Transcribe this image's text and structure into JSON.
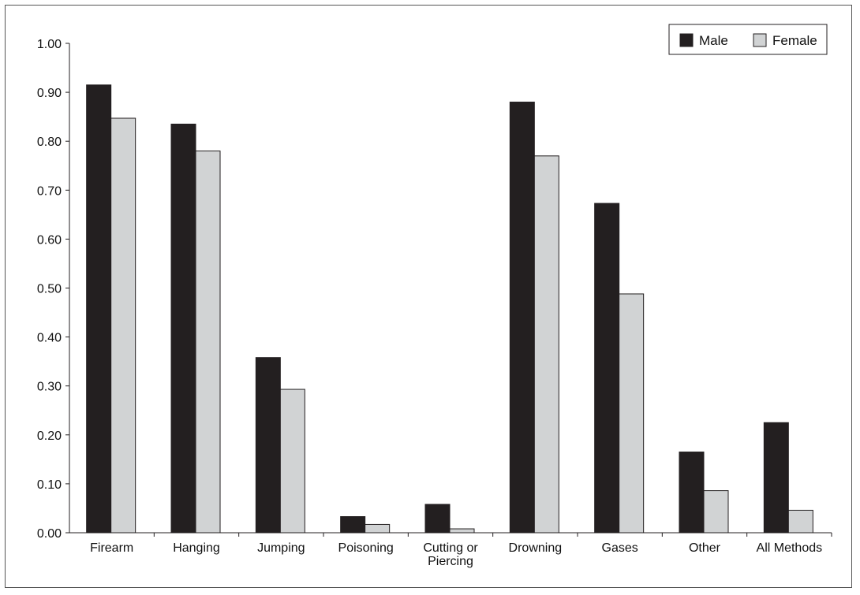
{
  "chart_data": {
    "type": "bar",
    "title": "",
    "xlabel": "",
    "ylabel": "",
    "categories": [
      "Firearm",
      "Hanging",
      "Jumping",
      "Poisoning",
      "Cutting or Piercing",
      "Drowning",
      "Gases",
      "Other",
      "All Methods"
    ],
    "category_lines": [
      [
        "Firearm"
      ],
      [
        "Hanging"
      ],
      [
        "Jumping"
      ],
      [
        "Poisoning"
      ],
      [
        "Cutting or",
        "Piercing"
      ],
      [
        "Drowning"
      ],
      [
        "Gases"
      ],
      [
        "Other"
      ],
      [
        "All Methods"
      ]
    ],
    "series": [
      {
        "name": "Male",
        "values": [
          0.915,
          0.835,
          0.358,
          0.033,
          0.058,
          0.88,
          0.673,
          0.165,
          0.225
        ]
      },
      {
        "name": "Female",
        "values": [
          0.847,
          0.78,
          0.293,
          0.017,
          0.008,
          0.77,
          0.488,
          0.086,
          0.046
        ]
      }
    ],
    "ylim": [
      0,
      1.0
    ],
    "yticks": [
      0,
      0.1,
      0.2,
      0.3,
      0.4,
      0.5,
      0.6,
      0.7,
      0.8,
      0.9,
      1.0
    ],
    "ytick_labels": [
      "0.00",
      "0.10",
      "0.20",
      "0.30",
      "0.40",
      "0.50",
      "0.60",
      "0.70",
      "0.80",
      "0.90",
      "1.00"
    ],
    "grid": false,
    "legend_position": "top-right",
    "colors": {
      "Male": "#231f20",
      "Female": "#d1d3d4",
      "outline": "#231f20"
    }
  }
}
